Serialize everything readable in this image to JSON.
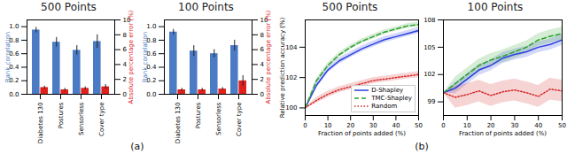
{
  "chart_data": [
    {
      "type": "bar",
      "title": "500 Points",
      "categories": [
        "Diabetes 130",
        "Postures",
        "Sensorless",
        "Cover type"
      ],
      "y_label": "Rank correlation",
      "y2_label": "Absolute percentage error (%)",
      "series": [
        {
          "color": "#4a7bc4",
          "values": [
            0.95,
            0.77,
            0.65,
            0.78
          ],
          "error": [
            0.04,
            0.07,
            0.07,
            0.1
          ]
        },
        {
          "color": "#e0201b",
          "axis": "y2",
          "values": [
            0.9,
            0.6,
            0.8,
            1.0
          ],
          "error": [
            0.2,
            0.2,
            0.2,
            0.3
          ]
        }
      ],
      "ylim": [
        0,
        1.1
      ],
      "yticks": [
        {
          "value": 0,
          "label": "0.0"
        },
        {
          "value": 0.2,
          "label": "0.2"
        },
        {
          "value": 0.4,
          "label": "0.4"
        },
        {
          "value": 0.6,
          "label": "0.6"
        },
        {
          "value": 0.8,
          "label": "0.8"
        },
        {
          "value": 1,
          "label": "1.0"
        }
      ],
      "y2lim": [
        0,
        10
      ],
      "y2ticks": [
        0,
        2,
        4,
        6,
        8,
        10
      ]
    },
    {
      "type": "bar",
      "title": "100 Points",
      "categories": [
        "Diabetes 130",
        "Postures",
        "Sensorless",
        "Cover type"
      ],
      "y_label": "Rank correlation",
      "y2_label": "Absolute percentage error (%)",
      "series": [
        {
          "color": "#4a7bc4",
          "values": [
            0.92,
            0.64,
            0.6,
            0.72
          ],
          "error": [
            0.04,
            0.08,
            0.06,
            0.08
          ]
        },
        {
          "color": "#e0201b",
          "axis": "y2",
          "values": [
            0.6,
            0.6,
            0.7,
            1.8
          ],
          "error": [
            0.2,
            0.2,
            0.2,
            0.7
          ]
        }
      ],
      "ylim": [
        0,
        1.1
      ],
      "yticks": [
        {
          "value": 0,
          "label": "0.0"
        },
        {
          "value": 0.2,
          "label": "0.2"
        },
        {
          "value": 0.4,
          "label": "0.4"
        },
        {
          "value": 0.6,
          "label": "0.6"
        },
        {
          "value": 0.8,
          "label": "0.8"
        },
        {
          "value": 1,
          "label": "1.0"
        }
      ],
      "y2lim": [
        0,
        10
      ],
      "y2ticks": [
        0,
        2,
        4,
        6,
        8,
        10
      ]
    },
    {
      "type": "line",
      "title": "500 Points",
      "x_label": "Fraction of points added (%)",
      "y_label": "Relative prediction accuracy (%)",
      "x": [
        0,
        5,
        10,
        15,
        20,
        25,
        30,
        35,
        40,
        45,
        50
      ],
      "series": [
        {
          "name": "D-Shapley",
          "color": "#2b3fe0",
          "line_style": "solid",
          "values": [
            100,
            101.5,
            102.5,
            103.1,
            103.5,
            103.9,
            104.2,
            104.5,
            104.7,
            104.9,
            105.1
          ],
          "std": [
            0,
            0.2,
            0.2,
            0.2,
            0.2,
            0.2,
            0.2,
            0.2,
            0.2,
            0.2,
            0.2
          ]
        },
        {
          "name": "TMC-Shapley",
          "color": "#2ca02c",
          "line_style": "dashed",
          "values": [
            100,
            101.8,
            102.8,
            103.5,
            104.0,
            104.4,
            104.7,
            105.0,
            105.2,
            105.4,
            105.5
          ],
          "std": [
            0,
            0.15,
            0.15,
            0.15,
            0.15,
            0.15,
            0.15,
            0.15,
            0.15,
            0.15,
            0.15
          ]
        },
        {
          "name": "Random",
          "color": "#d62728",
          "line_style": "dotted",
          "values": [
            100,
            100.5,
            100.9,
            101.2,
            101.4,
            101.6,
            101.8,
            101.9,
            102.0,
            102.1,
            102.2
          ],
          "std": [
            0,
            0.2,
            0.2,
            0.2,
            0.2,
            0.2,
            0.2,
            0.2,
            0.2,
            0.2,
            0.2
          ]
        }
      ],
      "xlim": [
        0,
        50
      ],
      "xticks": [
        0,
        10,
        20,
        30,
        40,
        50
      ],
      "ylim": [
        99.5,
        105.8
      ],
      "yticks": [
        100,
        102,
        104
      ],
      "legend": "lower right"
    },
    {
      "type": "line",
      "title": "100 Points",
      "x_label": "Fraction of points added (%)",
      "x": [
        0,
        5,
        10,
        15,
        20,
        25,
        30,
        35,
        40,
        45,
        50
      ],
      "series": [
        {
          "name": "D-Shapley",
          "color": "#2b3fe0",
          "line_style": "solid",
          "values": [
            100,
            100.5,
            101.5,
            102.5,
            103,
            103.8,
            104.2,
            104.5,
            105,
            105.3,
            105.8
          ],
          "std": [
            0,
            0.6,
            0.6,
            0.6,
            0.6,
            0.6,
            0.6,
            0.6,
            0.6,
            0.6,
            0.6
          ]
        },
        {
          "name": "TMC-Shapley",
          "color": "#2ca02c",
          "line_style": "dashed",
          "values": [
            100,
            101,
            102,
            103,
            103.6,
            104,
            104.5,
            105,
            105.8,
            106.2,
            106.5
          ],
          "std": [
            0,
            0.7,
            0.7,
            0.7,
            0.7,
            0.7,
            0.7,
            0.7,
            0.7,
            0.7,
            0.7
          ]
        },
        {
          "name": "Random",
          "color": "#d62728",
          "line_style": "dotted",
          "values": [
            100,
            99.5,
            99.8,
            100.2,
            99.7,
            100.1,
            100.3,
            100.0,
            99.6,
            100.4,
            100.2
          ],
          "std": [
            0,
            1.2,
            1.2,
            1.2,
            1.2,
            1.2,
            1.2,
            1.2,
            1.2,
            1.2,
            1.2
          ]
        }
      ],
      "xlim": [
        0,
        50
      ],
      "xticks": [
        0,
        10,
        20,
        30,
        40,
        50
      ],
      "ylim": [
        97.5,
        108
      ],
      "yticks": [
        99,
        102,
        105,
        108
      ]
    }
  ],
  "panels": [
    {
      "label": "(a)"
    },
    {
      "label": "(b)"
    }
  ]
}
